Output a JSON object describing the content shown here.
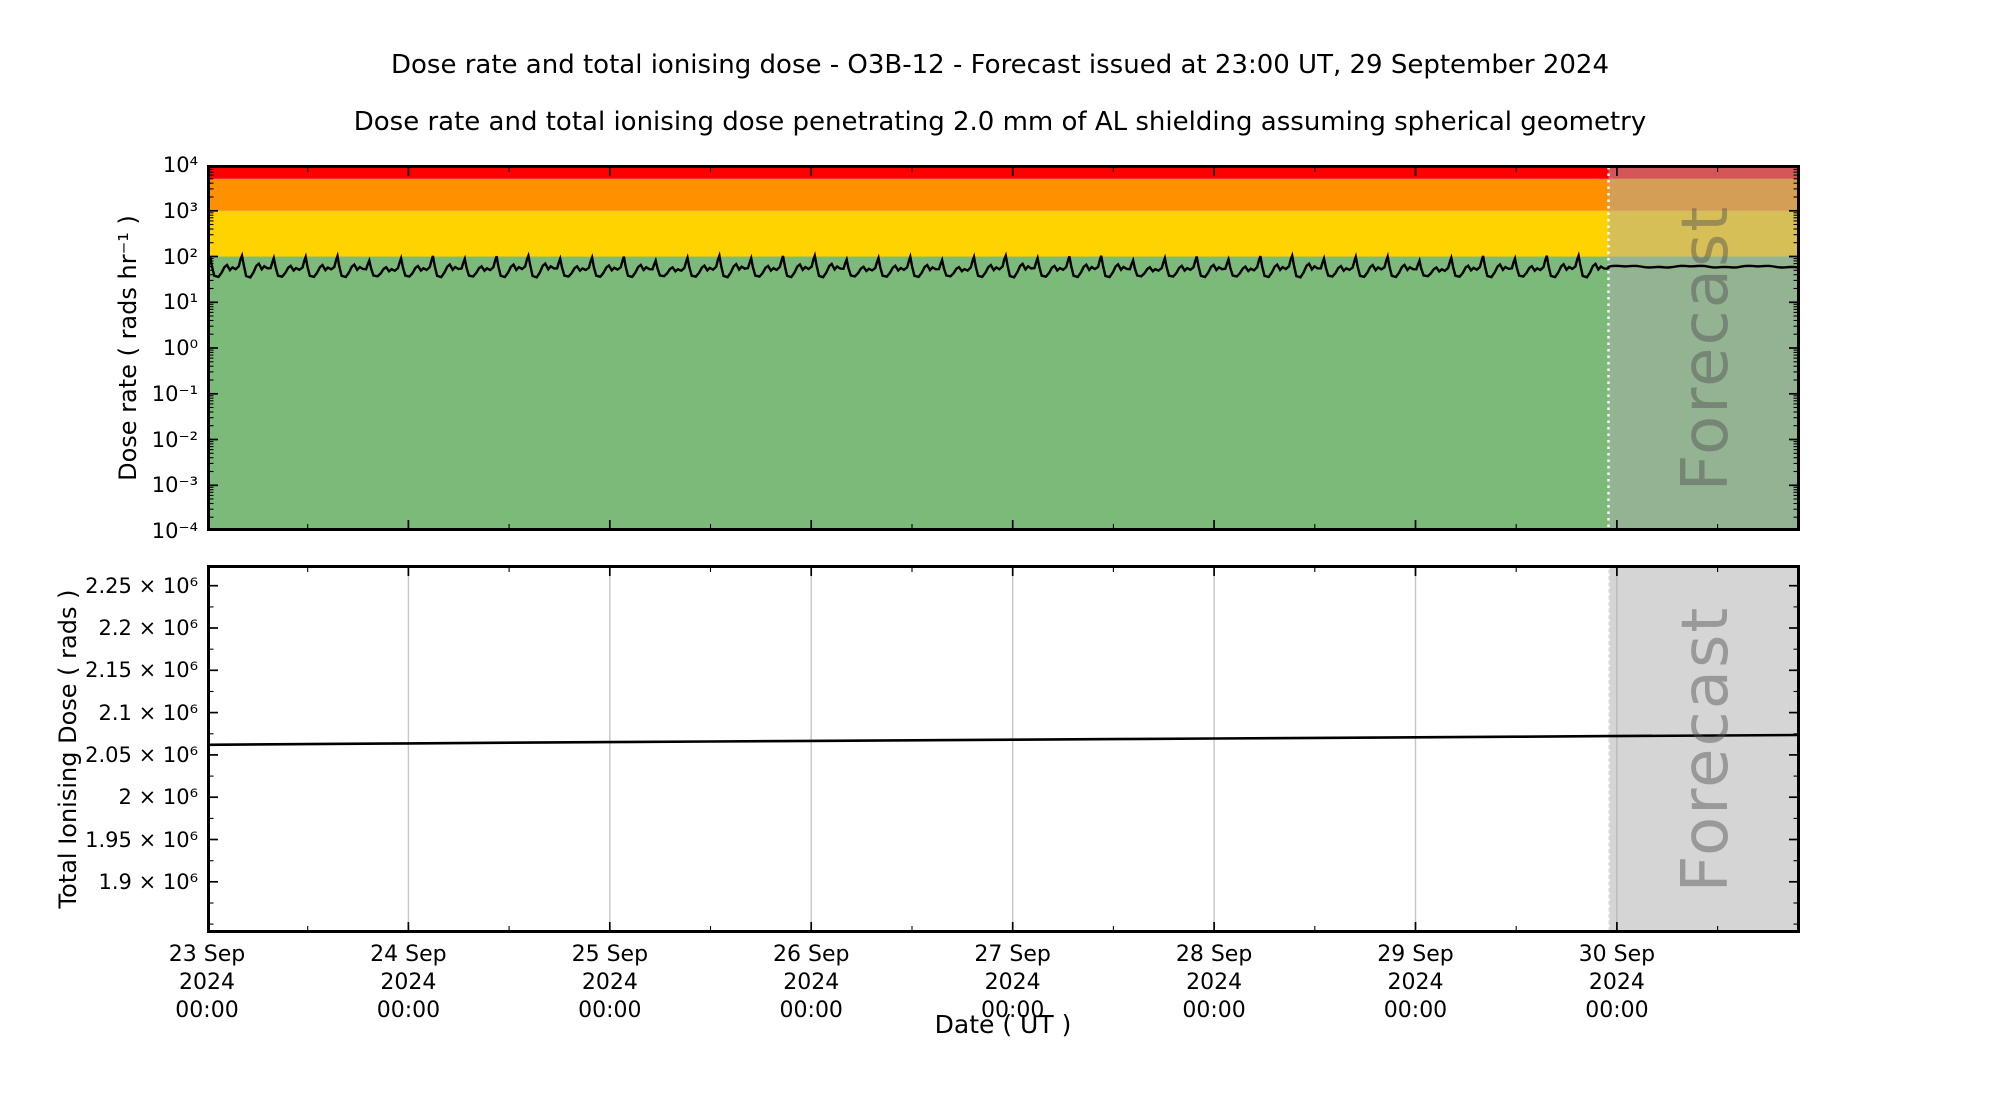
{
  "titles": {
    "main": "Dose rate and total ionising dose - O3B-12 - Forecast issued at 23:00 UT, 29 September 2024",
    "sub": "Dose rate and total ionising dose penetrating 2.0 mm of AL shielding assuming spherical geometry"
  },
  "x_axis": {
    "label": "Date ( UT )",
    "tick_dates": [
      "23 Sep",
      "24 Sep",
      "25 Sep",
      "26 Sep",
      "27 Sep",
      "28 Sep",
      "29 Sep",
      "30 Sep"
    ],
    "tick_year": "2024",
    "tick_time": "00:00",
    "span_days": 7.909
  },
  "forecast": {
    "label": "Forecast",
    "start_day": 6.9583,
    "issued_at": "23:00 UT, 29 September 2024"
  },
  "chart_data": [
    {
      "type": "line",
      "panel": "dose_rate",
      "ylabel": "Dose rate ( rads hr⁻¹ )",
      "yscale": "log",
      "ylim": [
        0.0001,
        10000
      ],
      "ytick_labels": [
        "10⁴",
        "10³",
        "10²",
        "10¹",
        "10⁰",
        "10⁻¹",
        "10⁻²",
        "10⁻³",
        "10⁻⁴"
      ],
      "grid": false,
      "threshold_bands": [
        {
          "name": "green",
          "from": 0.0001,
          "to": 100,
          "color": "#7CBA7A"
        },
        {
          "name": "yellow",
          "from": 100,
          "to": 1000,
          "color": "#FFD300"
        },
        {
          "name": "orange",
          "from": 1000,
          "to": 5000,
          "color": "#FF9100"
        },
        {
          "name": "red",
          "from": 5000,
          "to": 10000,
          "color": "#FF0000"
        }
      ],
      "series": {
        "name": "dose rate",
        "color": "#000000",
        "description": "quasi-periodic orbital modulation oscillating between ~35 and ~100 rads/hr, peaks touching the 100 rads/hr threshold",
        "period_days": 0.158,
        "pattern_day_fraction_value": [
          [
            0,
            57
          ],
          [
            0.055,
            78
          ],
          [
            0.1,
            96
          ],
          [
            0.155,
            60
          ],
          [
            0.23,
            38
          ],
          [
            0.36,
            36
          ],
          [
            0.46,
            44
          ],
          [
            0.55,
            58
          ],
          [
            0.63,
            64
          ],
          [
            0.72,
            50
          ],
          [
            0.8,
            57
          ],
          [
            0.9,
            52
          ]
        ],
        "jitter": {
          "base": 40,
          "amp1": 0.18,
          "freq1": 2.1,
          "amp2": 0.1,
          "freq2": 0.77,
          "phase2": 0.5,
          "cap": 104
        },
        "forecast_segment": {
          "mean": 60,
          "ripple1": 2.2,
          "ripple_period1": 0.33,
          "ripple2": 1.3,
          "ripple_period2": 0.11
        }
      }
    },
    {
      "type": "line",
      "panel": "total_ionising_dose",
      "ylabel": "Total Ionising Dose ( rads )",
      "yscale": "linear",
      "ylim": [
        1839500,
        2274500
      ],
      "ytick_values": [
        2250000,
        2200000,
        2150000,
        2100000,
        2050000,
        2000000,
        1950000,
        1900000
      ],
      "ytick_labels": [
        "2.25 × 10⁶",
        "2.2 × 10⁶",
        "2.15 × 10⁶",
        "2.1 × 10⁶",
        "2.05 × 10⁶",
        "2 × 10⁶",
        "1.95 × 10⁶",
        "1.9 × 10⁶"
      ],
      "grid": "vertical-daily",
      "series": {
        "name": "total ionising dose",
        "color": "#000000",
        "points_day_rads": [
          [
            0,
            2062000
          ],
          [
            0.5,
            2062800
          ],
          [
            1,
            2063600
          ],
          [
            1.5,
            2064400
          ],
          [
            2,
            2065100
          ],
          [
            2.5,
            2065900
          ],
          [
            3,
            2066600
          ],
          [
            3.5,
            2067300
          ],
          [
            4,
            2068000
          ],
          [
            4.5,
            2068700
          ],
          [
            5,
            2069400
          ],
          [
            5.5,
            2070100
          ],
          [
            6,
            2070800
          ],
          [
            6.5,
            2071500
          ],
          [
            6.9583,
            2072200
          ],
          [
            7.5,
            2072900
          ],
          [
            7.909,
            2073500
          ]
        ]
      }
    }
  ],
  "colors": {
    "forecast_overlay": "rgba(172,172,172,0.5)",
    "forecast_text": "rgba(80,80,80,0.45)",
    "gridline": "#C6C6C6",
    "divider_dotted": "#FFFFFF",
    "axis": "#000000"
  }
}
